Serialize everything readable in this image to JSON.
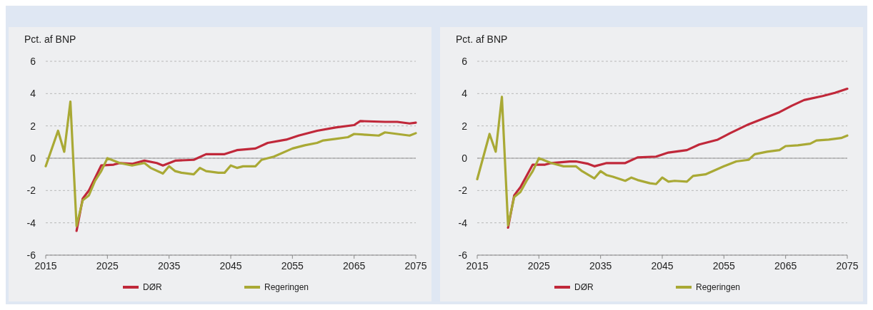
{
  "chart_data": [
    {
      "type": "line",
      "ylabel": "Pct. af BNP",
      "xlim": [
        2015,
        2075
      ],
      "xticks": [
        2015,
        2025,
        2035,
        2045,
        2055,
        2065,
        2075
      ],
      "ylim": [
        -6,
        6
      ],
      "yticks": [
        -6,
        -4,
        -2,
        0,
        2,
        4,
        6
      ],
      "grid": "y",
      "legend": "bottom",
      "line_style": "solid",
      "ref_lines": [
        {
          "axis": "y",
          "value": 0
        }
      ],
      "series": [
        {
          "name": "DØR",
          "color": "#c0283a",
          "x": [
            2020,
            2021,
            2022,
            2024,
            2026,
            2027,
            2029,
            2031,
            2033,
            2034,
            2036,
            2039,
            2041,
            2044,
            2046,
            2049,
            2051,
            2054,
            2056,
            2059,
            2062,
            2065,
            2066,
            2070,
            2072,
            2074,
            2075
          ],
          "values": [
            -4.5,
            -2.5,
            -2.0,
            -0.45,
            -0.4,
            -0.3,
            -0.35,
            -0.15,
            -0.3,
            -0.45,
            -0.15,
            -0.1,
            0.25,
            0.25,
            0.5,
            0.6,
            0.95,
            1.15,
            1.4,
            1.7,
            1.9,
            2.05,
            2.3,
            2.25,
            2.25,
            2.15,
            2.2
          ]
        },
        {
          "name": "Regeringen",
          "color": "#a9a935",
          "x": [
            2015,
            2017,
            2018,
            2019,
            2020,
            2021,
            2022,
            2023,
            2024,
            2025,
            2027,
            2029,
            2031,
            2032,
            2034,
            2035,
            2036,
            2037,
            2039,
            2040,
            2041,
            2043,
            2044,
            2045,
            2046,
            2047,
            2049,
            2050,
            2052,
            2055,
            2057,
            2059,
            2060,
            2062,
            2064,
            2065,
            2067,
            2069,
            2070,
            2072,
            2074,
            2075
          ],
          "values": [
            -0.5,
            1.7,
            0.4,
            3.5,
            -4.2,
            -2.6,
            -2.3,
            -1.4,
            -0.8,
            0.0,
            -0.3,
            -0.45,
            -0.3,
            -0.6,
            -0.95,
            -0.5,
            -0.8,
            -0.9,
            -1.0,
            -0.6,
            -0.8,
            -0.9,
            -0.9,
            -0.45,
            -0.6,
            -0.5,
            -0.5,
            -0.1,
            0.1,
            0.6,
            0.8,
            0.95,
            1.1,
            1.2,
            1.3,
            1.5,
            1.45,
            1.4,
            1.6,
            1.5,
            1.4,
            1.55
          ]
        }
      ]
    },
    {
      "type": "line",
      "ylabel": "Pct. af BNP",
      "xlim": [
        2015,
        2075
      ],
      "xticks": [
        2015,
        2025,
        2035,
        2045,
        2055,
        2065,
        2075
      ],
      "ylim": [
        -6,
        6
      ],
      "yticks": [
        -6,
        -4,
        -2,
        0,
        2,
        4,
        6
      ],
      "grid": "y",
      "legend": "bottom",
      "line_style": "solid",
      "ref_lines": [
        {
          "axis": "y",
          "value": 0
        }
      ],
      "series": [
        {
          "name": "DØR",
          "color": "#c0283a",
          "x": [
            2020,
            2021,
            2022,
            2024,
            2026,
            2027,
            2030,
            2031,
            2033,
            2034,
            2036,
            2039,
            2041,
            2044,
            2046,
            2049,
            2051,
            2054,
            2056,
            2059,
            2062,
            2064,
            2066,
            2068,
            2071,
            2073,
            2075
          ],
          "values": [
            -4.3,
            -2.3,
            -1.8,
            -0.4,
            -0.4,
            -0.3,
            -0.2,
            -0.2,
            -0.35,
            -0.5,
            -0.3,
            -0.3,
            0.05,
            0.1,
            0.35,
            0.5,
            0.85,
            1.15,
            1.55,
            2.1,
            2.55,
            2.85,
            3.25,
            3.6,
            3.85,
            4.05,
            4.3
          ]
        },
        {
          "name": "Regeringen",
          "color": "#a9a935",
          "x": [
            2015,
            2017,
            2018,
            2019,
            2020,
            2021,
            2022,
            2023,
            2024,
            2025,
            2027,
            2029,
            2031,
            2032,
            2034,
            2035,
            2036,
            2037,
            2039,
            2040,
            2041,
            2043,
            2044,
            2045,
            2046,
            2047,
            2049,
            2050,
            2052,
            2055,
            2057,
            2059,
            2060,
            2062,
            2064,
            2065,
            2067,
            2069,
            2070,
            2072,
            2074,
            2075
          ],
          "values": [
            -1.3,
            1.5,
            0.4,
            3.8,
            -4.15,
            -2.4,
            -2.1,
            -1.4,
            -0.8,
            0.0,
            -0.3,
            -0.5,
            -0.5,
            -0.8,
            -1.25,
            -0.8,
            -1.05,
            -1.15,
            -1.4,
            -1.2,
            -1.35,
            -1.55,
            -1.6,
            -1.2,
            -1.45,
            -1.4,
            -1.45,
            -1.1,
            -1.0,
            -0.5,
            -0.2,
            -0.1,
            0.25,
            0.4,
            0.5,
            0.75,
            0.8,
            0.9,
            1.1,
            1.15,
            1.25,
            1.4
          ]
        }
      ]
    }
  ]
}
